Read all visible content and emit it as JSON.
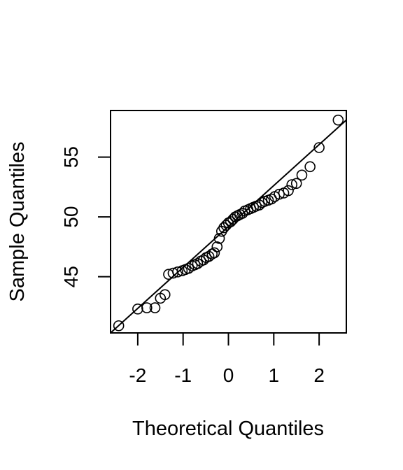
{
  "chart_data": {
    "type": "scatter",
    "title": "",
    "xlabel": "Theoretical Quantiles",
    "ylabel": "Sample Quantiles",
    "xlim": [
      -2.6,
      2.6
    ],
    "ylim": [
      40.3,
      58.9
    ],
    "x_ticks": [
      -2,
      -1,
      0,
      1,
      2
    ],
    "y_ticks": [
      45,
      50,
      55
    ],
    "grid": false,
    "legend": "none",
    "reference_line": {
      "x": [
        -2.6,
        2.6
      ],
      "y": [
        40.3,
        58.1
      ]
    },
    "points": [
      {
        "x": -2.42,
        "y": 40.9
      },
      {
        "x": -2.0,
        "y": 42.3
      },
      {
        "x": -1.8,
        "y": 42.4
      },
      {
        "x": -1.62,
        "y": 42.4
      },
      {
        "x": -1.5,
        "y": 43.2
      },
      {
        "x": -1.4,
        "y": 43.5
      },
      {
        "x": -1.32,
        "y": 45.2
      },
      {
        "x": -1.22,
        "y": 45.3
      },
      {
        "x": -1.12,
        "y": 45.4
      },
      {
        "x": -1.02,
        "y": 45.5
      },
      {
        "x": -0.95,
        "y": 45.6
      },
      {
        "x": -0.88,
        "y": 45.7
      },
      {
        "x": -0.8,
        "y": 45.9
      },
      {
        "x": -0.74,
        "y": 46.0
      },
      {
        "x": -0.68,
        "y": 46.1
      },
      {
        "x": -0.61,
        "y": 46.3
      },
      {
        "x": -0.55,
        "y": 46.4
      },
      {
        "x": -0.49,
        "y": 46.6
      },
      {
        "x": -0.43,
        "y": 46.7
      },
      {
        "x": -0.36,
        "y": 46.9
      },
      {
        "x": -0.31,
        "y": 47.0
      },
      {
        "x": -0.25,
        "y": 47.5
      },
      {
        "x": -0.2,
        "y": 48.2
      },
      {
        "x": -0.15,
        "y": 48.8
      },
      {
        "x": -0.1,
        "y": 49.1
      },
      {
        "x": -0.05,
        "y": 49.3
      },
      {
        "x": 0.0,
        "y": 49.5
      },
      {
        "x": 0.05,
        "y": 49.6
      },
      {
        "x": 0.1,
        "y": 49.8
      },
      {
        "x": 0.15,
        "y": 50.0
      },
      {
        "x": 0.2,
        "y": 50.1
      },
      {
        "x": 0.25,
        "y": 50.2
      },
      {
        "x": 0.31,
        "y": 50.3
      },
      {
        "x": 0.36,
        "y": 50.5
      },
      {
        "x": 0.43,
        "y": 50.6
      },
      {
        "x": 0.49,
        "y": 50.7
      },
      {
        "x": 0.55,
        "y": 50.8
      },
      {
        "x": 0.61,
        "y": 50.9
      },
      {
        "x": 0.68,
        "y": 51.0
      },
      {
        "x": 0.74,
        "y": 51.2
      },
      {
        "x": 0.8,
        "y": 51.3
      },
      {
        "x": 0.88,
        "y": 51.4
      },
      {
        "x": 0.95,
        "y": 51.5
      },
      {
        "x": 1.02,
        "y": 51.7
      },
      {
        "x": 1.12,
        "y": 51.9
      },
      {
        "x": 1.22,
        "y": 52.0
      },
      {
        "x": 1.32,
        "y": 52.2
      },
      {
        "x": 1.4,
        "y": 52.7
      },
      {
        "x": 1.5,
        "y": 52.8
      },
      {
        "x": 1.62,
        "y": 53.5
      },
      {
        "x": 1.8,
        "y": 54.2
      },
      {
        "x": 2.0,
        "y": 55.8
      },
      {
        "x": 2.42,
        "y": 58.1
      }
    ]
  }
}
